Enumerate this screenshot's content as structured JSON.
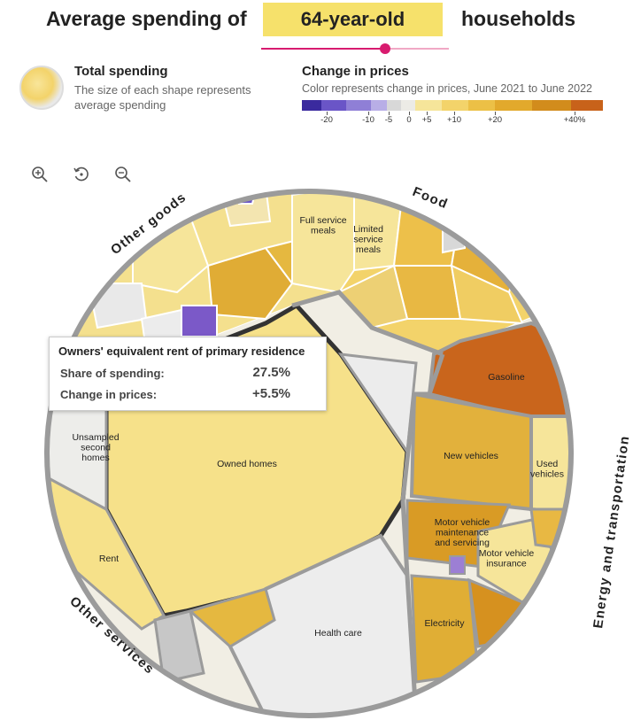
{
  "header": {
    "title_left": "Average spending of",
    "selected_age": "64-year-old",
    "title_right": "households",
    "slider_value_fraction": 0.66
  },
  "legend_size": {
    "title": "Total spending",
    "description": "The size of each shape represents average spending"
  },
  "legend_color": {
    "title": "Change in prices",
    "description": "Color represents change in prices, June 2021 to June 2022",
    "bins": [
      {
        "color": "#3a2a9e"
      },
      {
        "color": "#6a55c7"
      },
      {
        "color": "#8f7fd6"
      },
      {
        "color": "#b8aee6"
      },
      {
        "color": "#d8d8d8"
      },
      {
        "color": "#ecebe6"
      },
      {
        "color": "#f6e59a"
      },
      {
        "color": "#f3d36a"
      },
      {
        "color": "#ecc046"
      },
      {
        "color": "#e2a92c"
      },
      {
        "color": "#d28c1c"
      },
      {
        "color": "#c8621a"
      }
    ],
    "ticks": [
      {
        "label": "-20",
        "value": -20
      },
      {
        "label": "-10",
        "value": -10
      },
      {
        "label": "-5",
        "value": -5
      },
      {
        "label": "0",
        "value": 0
      },
      {
        "label": "+5",
        "value": 5
      },
      {
        "label": "+10",
        "value": 10
      },
      {
        "label": "+20",
        "value": 20
      },
      {
        "label": "+40%",
        "value": 40
      }
    ]
  },
  "controls": {
    "zoom_in_icon": "zoom-in-icon",
    "reset_icon": "reset-icon",
    "zoom_out_icon": "zoom-out-icon"
  },
  "tooltip": {
    "title": "Owners' equivalent rent of primary residence",
    "share_label": "Share of spending:",
    "share_value": "27.5%",
    "change_label": "Change in prices:",
    "change_value": "+5.5%"
  },
  "chart_data": {
    "type": "voronoi-treemap",
    "title": "Average spending of 64-year-old households",
    "groups": [
      "Other goods",
      "Food",
      "Energy and transportation",
      "Other services"
    ],
    "labeled_cells": [
      {
        "name": "Full service meals",
        "group": "Food"
      },
      {
        "name": "Limited service meals",
        "group": "Food"
      },
      {
        "name": "Gasoline",
        "group": "Energy and transportation"
      },
      {
        "name": "New vehicles",
        "group": "Energy and transportation"
      },
      {
        "name": "Used vehicles",
        "group": "Energy and transportation"
      },
      {
        "name": "Motor vehicle maintenance and servicing",
        "group": "Energy and transportation"
      },
      {
        "name": "Motor vehicle insurance",
        "group": "Energy and transportation"
      },
      {
        "name": "Electricity",
        "group": "Energy and transportation"
      },
      {
        "name": "Health care",
        "group": "Other services"
      },
      {
        "name": "Rent",
        "group": "Other services"
      },
      {
        "name": "Unsampled second homes",
        "group": "Other services"
      },
      {
        "name": "Owned homes",
        "group": "Other services",
        "share_of_spending": 27.5,
        "change_in_prices": 5.5
      }
    ]
  }
}
